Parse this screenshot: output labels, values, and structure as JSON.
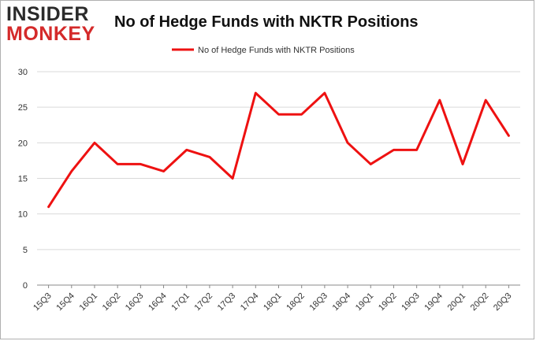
{
  "logo": {
    "line1": "INSIDER",
    "line2": "MONKEY"
  },
  "chart_data": {
    "type": "line",
    "title": "No of Hedge Funds with NKTR Positions",
    "xlabel": "",
    "ylabel": "",
    "ylim": [
      0,
      30
    ],
    "yticks": [
      0,
      5,
      10,
      15,
      20,
      25,
      30
    ],
    "grid": true,
    "legend": "top-center",
    "categories": [
      "15Q3",
      "15Q4",
      "16Q1",
      "16Q2",
      "16Q3",
      "16Q4",
      "17Q1",
      "17Q2",
      "17Q3",
      "17Q4",
      "18Q1",
      "18Q2",
      "18Q3",
      "18Q4",
      "19Q1",
      "19Q2",
      "19Q3",
      "19Q4",
      "20Q1",
      "20Q2",
      "20Q3"
    ],
    "series": [
      {
        "name": "No of Hedge Funds with NKTR Positions",
        "color": "#ee1111",
        "values": [
          11,
          16,
          20,
          17,
          17,
          16,
          19,
          18,
          15,
          27,
          24,
          24,
          27,
          20,
          17,
          19,
          19,
          26,
          17,
          26,
          21
        ]
      }
    ]
  }
}
